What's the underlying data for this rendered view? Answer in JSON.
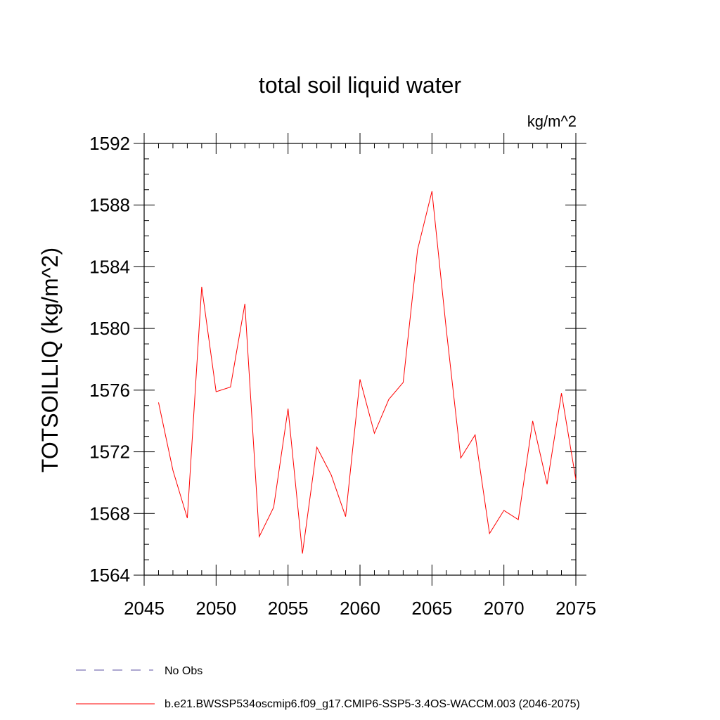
{
  "chart_data": {
    "type": "line",
    "title": "total soil liquid water",
    "units_label": "kg/m^2",
    "ylabel": "TOTSOILLIQ  (kg/m^2)",
    "xlabel": "",
    "xlim": [
      2045,
      2075
    ],
    "ylim": [
      1564,
      1592
    ],
    "xticks": [
      2045,
      2050,
      2055,
      2060,
      2065,
      2070,
      2075
    ],
    "yticks": [
      1564,
      1568,
      1572,
      1576,
      1580,
      1584,
      1588,
      1592
    ],
    "series": [
      {
        "name": "b.e21.BWSSP534oscmip6.f09_g17.CMIP6-SSP5-3.4OS-WACCM.003 (2046-2075)",
        "color": "#ff0000",
        "style": "solid",
        "x": [
          2046,
          2047,
          2048,
          2049,
          2050,
          2051,
          2052,
          2053,
          2054,
          2055,
          2056,
          2057,
          2058,
          2059,
          2060,
          2061,
          2062,
          2063,
          2064,
          2065,
          2066,
          2067,
          2068,
          2069,
          2070,
          2071,
          2072,
          2073,
          2074,
          2075
        ],
        "values": [
          1575.2,
          1570.8,
          1567.7,
          1582.7,
          1575.9,
          1576.2,
          1581.6,
          1566.5,
          1568.4,
          1574.8,
          1565.4,
          1572.3,
          1570.5,
          1567.8,
          1576.7,
          1573.2,
          1575.4,
          1576.5,
          1585.1,
          1588.9,
          1579.9,
          1571.6,
          1573.1,
          1566.7,
          1568.2,
          1567.6,
          1574.0,
          1569.9,
          1575.8,
          1570.2
        ]
      }
    ],
    "legend": [
      {
        "label": "No Obs",
        "color": "#5b4fa0",
        "style": "dashed"
      },
      {
        "label": "b.e21.BWSSP534oscmip6.f09_g17.CMIP6-SSP5-3.4OS-WACCM.003 (2046-2075)",
        "color": "#ff0000",
        "style": "solid"
      }
    ]
  }
}
